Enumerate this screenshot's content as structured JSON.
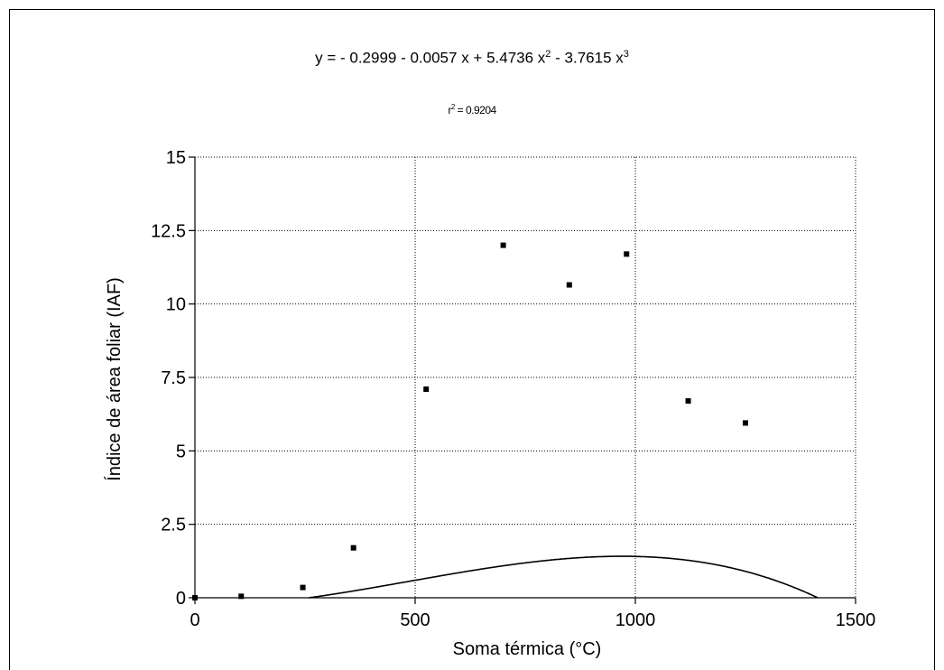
{
  "chart_data": {
    "type": "scatter",
    "equation": {
      "prefix": "y = - 0.2999 - 0.0057 x + 5.4736 x",
      "exp2": "2",
      "mid": " - 3.7615 x",
      "exp3": "3"
    },
    "r2": {
      "prefix": "r",
      "exp": "2",
      "value": " = 0.9204"
    },
    "xlabel": "Soma térmica (°C)",
    "ylabel": "Índice de área foliar (IAF)",
    "xlim": [
      0,
      1500
    ],
    "ylim": [
      0,
      15
    ],
    "x_ticks": [
      0,
      500,
      1000,
      1500
    ],
    "x_tick_labels": [
      "0",
      "500",
      "1000",
      "1500"
    ],
    "y_ticks": [
      0,
      2.5,
      5,
      7.5,
      10,
      12.5,
      15
    ],
    "y_tick_labels": [
      "0",
      "2.5",
      "5",
      "7.5",
      "10",
      "12.5",
      "15"
    ],
    "grid": true,
    "points": {
      "x": [
        0,
        105,
        245,
        360,
        525,
        700,
        850,
        980,
        1120,
        1250
      ],
      "y": [
        0.0,
        0.05,
        0.35,
        1.7,
        7.1,
        12.0,
        10.65,
        11.7,
        6.7,
        5.95
      ]
    },
    "fit": {
      "x_scale": 1000,
      "coefficients": [
        -0.2999,
        -0.0057,
        5.4736,
        -3.7615
      ]
    }
  },
  "colors": {
    "marks": "#000000",
    "grid": "#000000",
    "background": "#ffffff"
  }
}
